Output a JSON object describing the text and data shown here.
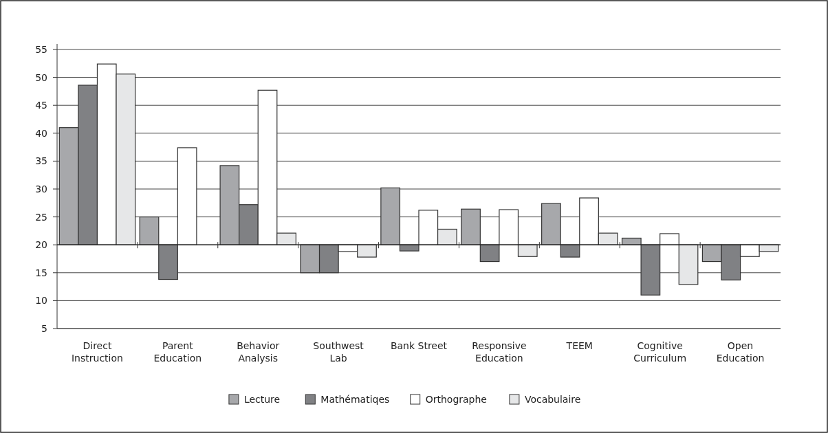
{
  "chart_data": {
    "type": "bar",
    "categories": [
      "Direct Instruction",
      "Parent Education",
      "Behavior Analysis",
      "Southwest Lab",
      "Bank Street",
      "Responsive Education",
      "TEEM",
      "Cognitive Curriculum",
      "Open Education"
    ],
    "series": [
      {
        "name": "Lecture",
        "color": "#a7a8ab",
        "base": [
          20,
          20,
          20,
          20,
          20,
          20,
          20,
          20,
          20
        ],
        "values": [
          21,
          5,
          14.2,
          -5,
          10.2,
          6.4,
          7.4,
          1.2,
          -3
        ]
      },
      {
        "name": "Mathématiqes",
        "color": "#808184",
        "base": [
          20,
          20,
          20,
          20,
          20,
          20,
          20,
          20,
          20
        ],
        "values": [
          28.6,
          -6.2,
          7.2,
          -5,
          -1.1,
          -3,
          -2.2,
          -9,
          -6.3
        ]
      },
      {
        "name": "Orthographe",
        "color": "#ffffff",
        "base": [
          20,
          20,
          20,
          20,
          20,
          20,
          20,
          20,
          20
        ],
        "values": [
          32.4,
          17.4,
          27.7,
          -1.2,
          6.2,
          6.3,
          8.4,
          2,
          -2.1
        ]
      },
      {
        "name": "Vocabulaire",
        "color": "#e6e7e8",
        "base": [
          20,
          null,
          20,
          20,
          20,
          20,
          20,
          20,
          20
        ],
        "values": [
          30.6,
          null,
          2.1,
          -2.2,
          2.8,
          -2.1,
          2.1,
          -7.1,
          -1.2
        ]
      }
    ],
    "ylim": [
      5,
      55
    ],
    "yticks": [
      5,
      10,
      15,
      20,
      25,
      30,
      35,
      40,
      45,
      50,
      55
    ],
    "ref_lines": [
      {
        "axis": "y",
        "value": 20,
        "color": "#222222"
      }
    ],
    "grid": "y",
    "legend": "bottom"
  }
}
